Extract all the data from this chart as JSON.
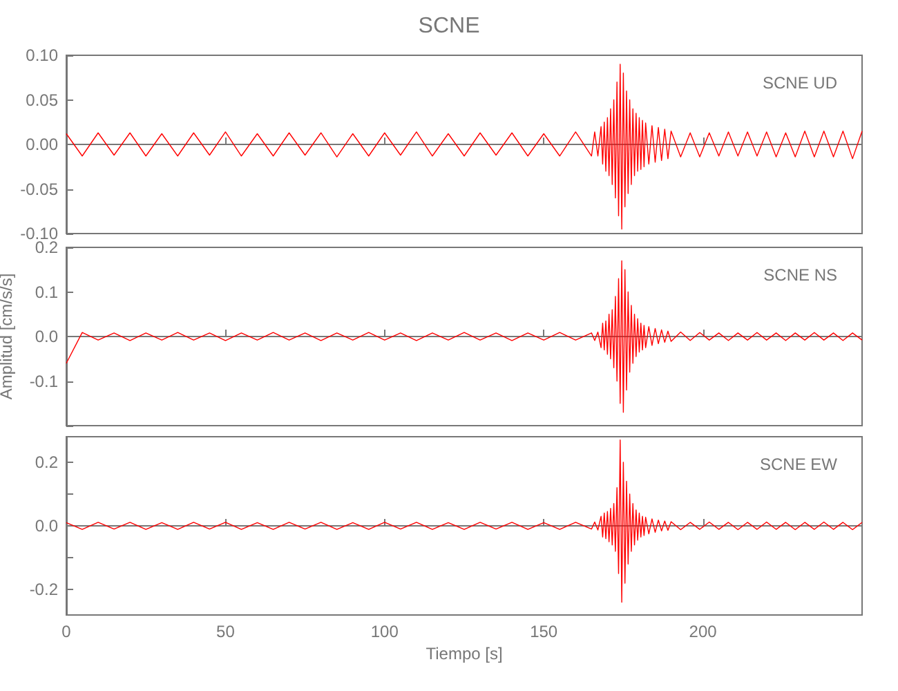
{
  "chart_data": [
    {
      "type": "line",
      "title": "SCNE",
      "annotations": [
        "SCNE UD"
      ],
      "marker": "none",
      "tick_labels": "y",
      "xlim": [
        0,
        250
      ],
      "xticks": [
        0,
        50,
        100,
        150,
        200
      ],
      "ylim": [
        -0.1,
        0.1
      ],
      "yticks": [
        {
          "value": -0.1,
          "label": "-0.10"
        },
        {
          "value": -0.05,
          "label": "-0.05"
        },
        {
          "value": 0,
          "label": "0.00"
        },
        {
          "value": 0.05,
          "label": "0.05"
        },
        {
          "value": 0.1,
          "label": "0.10"
        }
      ],
      "x": [
        0,
        5,
        10,
        15,
        20,
        25,
        30,
        35,
        40,
        45,
        50,
        55,
        60,
        65,
        70,
        75,
        80,
        85,
        90,
        95,
        100,
        105,
        110,
        115,
        120,
        125,
        130,
        135,
        140,
        145,
        150,
        155,
        160,
        165,
        166,
        167,
        168,
        168.5,
        169,
        169.5,
        170,
        170.5,
        171,
        171.5,
        172,
        172.5,
        173,
        173.5,
        174,
        174.5,
        175,
        175.5,
        176,
        176.5,
        177,
        177.5,
        178,
        178.5,
        179,
        179.5,
        180,
        180.5,
        181,
        181.5,
        182,
        183,
        184,
        185,
        186,
        187,
        188,
        189,
        190,
        193,
        196,
        199,
        202,
        205,
        208,
        211,
        214,
        217,
        220,
        223,
        226,
        229,
        232,
        235,
        238,
        241,
        244,
        247,
        250
      ],
      "series": [
        {
          "color": "#ff0000",
          "values": [
            0.012,
            -0.013,
            0.013,
            -0.012,
            0.013,
            -0.013,
            0.012,
            -0.013,
            0.013,
            -0.012,
            0.014,
            -0.013,
            0.012,
            -0.013,
            0.013,
            -0.012,
            0.013,
            -0.014,
            0.012,
            -0.013,
            0.013,
            -0.012,
            0.014,
            -0.013,
            0.012,
            -0.013,
            0.013,
            -0.012,
            0.013,
            -0.013,
            0.012,
            -0.013,
            0.014,
            -0.013,
            0.014,
            -0.013,
            0.02,
            -0.022,
            0.025,
            -0.03,
            0.03,
            -0.035,
            0.04,
            -0.045,
            0.05,
            -0.06,
            0.07,
            -0.08,
            0.09,
            -0.095,
            0.08,
            -0.07,
            0.06,
            -0.055,
            0.05,
            -0.045,
            0.04,
            -0.035,
            0.035,
            -0.03,
            0.03,
            -0.028,
            0.027,
            -0.025,
            0.024,
            -0.022,
            0.021,
            -0.02,
            0.019,
            -0.018,
            0.017,
            -0.016,
            0.015,
            -0.014,
            0.013,
            -0.014,
            0.013,
            -0.013,
            0.014,
            -0.013,
            0.014,
            -0.013,
            0.014,
            -0.014,
            0.013,
            -0.014,
            0.015,
            -0.014,
            0.015,
            -0.014,
            0.015,
            -0.016,
            0.015
          ]
        }
      ]
    },
    {
      "type": "line",
      "ylabel": "Amplitud [cm/s/s]",
      "annotations": [
        "SCNE NS"
      ],
      "marker": "none",
      "tick_labels": "y",
      "xlim": [
        0,
        250
      ],
      "xticks": [
        0,
        50,
        100,
        150,
        200
      ],
      "ylim": [
        -0.2,
        0.2
      ],
      "yticks": [
        {
          "value": -0.2,
          "label": null
        },
        {
          "value": -0.1,
          "label": "-0.1"
        },
        {
          "value": 0,
          "label": "0.0"
        },
        {
          "value": 0.1,
          "label": "0.1"
        },
        {
          "value": 0.2,
          "label": "0.2"
        }
      ],
      "x": [
        0,
        5,
        10,
        15,
        20,
        25,
        30,
        35,
        40,
        45,
        50,
        55,
        60,
        65,
        70,
        75,
        80,
        85,
        90,
        95,
        100,
        105,
        110,
        115,
        120,
        125,
        130,
        135,
        140,
        145,
        150,
        155,
        160,
        165,
        166,
        167,
        168,
        168.5,
        169,
        169.5,
        170,
        170.5,
        171,
        171.5,
        172,
        172.5,
        173,
        173.5,
        174,
        174.5,
        175,
        175.5,
        176,
        176.5,
        177,
        177.5,
        178,
        178.5,
        179,
        179.5,
        180,
        180.5,
        181,
        181.5,
        182,
        183,
        184,
        185,
        186,
        187,
        188,
        189,
        190,
        193,
        196,
        199,
        202,
        205,
        208,
        211,
        214,
        217,
        220,
        223,
        226,
        229,
        232,
        235,
        238,
        241,
        244,
        247,
        250
      ],
      "series": [
        {
          "color": "#ff0000",
          "values": [
            -0.06,
            0.009,
            -0.008,
            0.008,
            -0.009,
            0.008,
            -0.008,
            0.009,
            -0.008,
            0.008,
            -0.009,
            0.008,
            -0.008,
            0.009,
            -0.008,
            0.008,
            -0.009,
            0.008,
            -0.008,
            0.009,
            -0.008,
            0.008,
            -0.009,
            0.008,
            -0.008,
            0.009,
            -0.008,
            0.008,
            -0.009,
            0.008,
            -0.008,
            0.009,
            -0.008,
            0.008,
            -0.009,
            0.01,
            -0.025,
            0.03,
            -0.03,
            0.035,
            -0.04,
            0.05,
            -0.05,
            0.06,
            -0.07,
            0.09,
            -0.1,
            0.13,
            -0.15,
            0.17,
            -0.17,
            0.15,
            -0.12,
            0.1,
            -0.08,
            0.07,
            -0.06,
            0.05,
            -0.045,
            0.04,
            -0.035,
            0.03,
            -0.03,
            0.025,
            -0.025,
            0.022,
            -0.02,
            0.018,
            -0.016,
            0.015,
            -0.013,
            0.012,
            -0.011,
            0.01,
            -0.009,
            0.009,
            -0.008,
            0.008,
            -0.009,
            0.008,
            -0.008,
            0.009,
            -0.008,
            0.008,
            -0.009,
            0.008,
            -0.008,
            0.009,
            -0.008,
            0.008,
            -0.009,
            0.008,
            -0.008
          ]
        }
      ]
    },
    {
      "type": "line",
      "xlabel": "Tiempo [s]",
      "annotations": [
        "SCNE EW"
      ],
      "marker": "none",
      "xlim": [
        0,
        250
      ],
      "xticks": [
        0,
        50,
        100,
        150,
        200
      ],
      "ylim": [
        -0.28,
        0.28
      ],
      "yticks": [
        {
          "value": -0.2,
          "label": "-0.2"
        },
        {
          "value": -0.1,
          "label": null
        },
        {
          "value": 0,
          "label": "0.0"
        },
        {
          "value": 0.1,
          "label": null
        },
        {
          "value": 0.2,
          "label": "0.2"
        }
      ],
      "x": [
        0,
        5,
        10,
        15,
        20,
        25,
        30,
        35,
        40,
        45,
        50,
        55,
        60,
        65,
        70,
        75,
        80,
        85,
        90,
        95,
        100,
        105,
        110,
        115,
        120,
        125,
        130,
        135,
        140,
        145,
        150,
        155,
        160,
        165,
        166,
        167,
        168,
        168.5,
        169,
        169.5,
        170,
        170.5,
        171,
        171.5,
        172,
        172.5,
        173,
        173.5,
        174,
        174.5,
        175,
        175.5,
        176,
        176.5,
        177,
        177.5,
        178,
        178.5,
        179,
        179.5,
        180,
        180.5,
        181,
        181.5,
        182,
        183,
        184,
        185,
        186,
        187,
        188,
        189,
        190,
        193,
        196,
        199,
        202,
        205,
        208,
        211,
        214,
        217,
        220,
        223,
        226,
        229,
        232,
        235,
        238,
        241,
        244,
        247,
        250
      ],
      "series": [
        {
          "color": "#ff0000",
          "values": [
            0.01,
            -0.011,
            0.011,
            -0.01,
            0.011,
            -0.011,
            0.01,
            -0.011,
            0.011,
            -0.01,
            0.011,
            -0.011,
            0.01,
            -0.011,
            0.011,
            -0.01,
            0.011,
            -0.011,
            0.01,
            -0.011,
            0.011,
            -0.01,
            0.011,
            -0.011,
            0.01,
            -0.011,
            0.011,
            -0.01,
            0.011,
            -0.011,
            0.01,
            -0.011,
            0.011,
            -0.01,
            0.012,
            -0.013,
            0.03,
            -0.035,
            0.04,
            -0.04,
            0.045,
            -0.05,
            0.055,
            -0.06,
            0.07,
            -0.08,
            0.12,
            -0.15,
            0.27,
            -0.24,
            0.2,
            -0.18,
            0.14,
            -0.12,
            0.1,
            -0.08,
            0.07,
            -0.06,
            0.05,
            -0.045,
            0.04,
            -0.035,
            0.03,
            -0.03,
            0.027,
            -0.025,
            0.022,
            -0.02,
            0.018,
            -0.016,
            0.015,
            -0.014,
            0.013,
            -0.012,
            0.011,
            -0.011,
            0.012,
            -0.011,
            0.011,
            -0.012,
            0.011,
            -0.011,
            0.012,
            -0.011,
            0.011,
            -0.012,
            0.011,
            -0.011,
            0.012,
            -0.011,
            0.011,
            -0.012,
            0.011
          ]
        }
      ]
    }
  ]
}
